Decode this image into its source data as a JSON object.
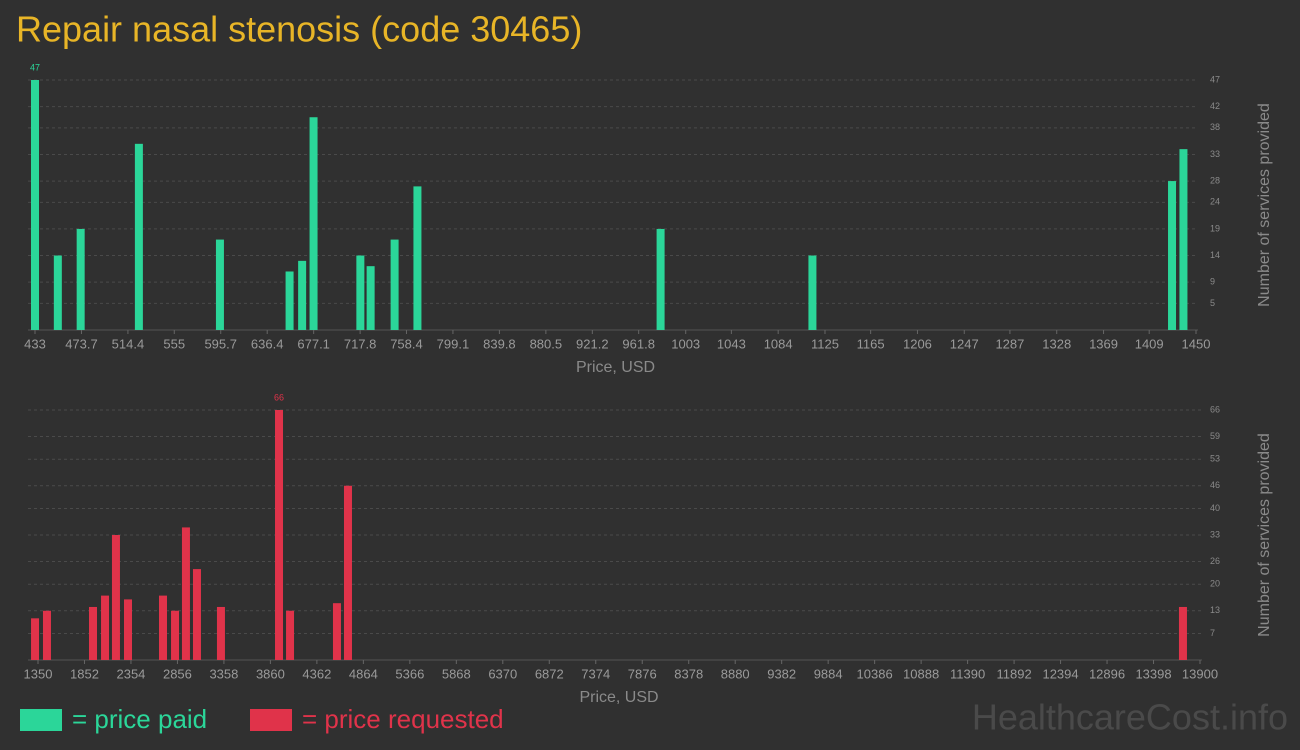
{
  "title": "Repair nasal stenosis (code 30465)",
  "watermark": "HealthcareCost.info",
  "chart_data": [
    {
      "type": "bar",
      "name": "= price paid",
      "color": "#2bd699",
      "x": [
        433,
        453,
        473,
        524,
        595,
        656,
        667,
        677,
        718,
        727,
        748,
        768,
        981,
        1114,
        1429,
        1439
      ],
      "values": [
        47,
        14,
        19,
        35,
        17,
        11,
        13,
        40,
        14,
        12,
        17,
        27,
        19,
        14,
        28,
        34
      ],
      "xlim": [
        433,
        1450
      ],
      "xticks": [
        433,
        473.7,
        514.4,
        555,
        595.7,
        636.4,
        677.1,
        717.8,
        758.4,
        799.1,
        839.8,
        880.5,
        921.2,
        961.8,
        1003,
        1043,
        1084,
        1125,
        1165,
        1206,
        1247,
        1287,
        1328,
        1369,
        1409,
        1450
      ],
      "ylim": [
        0,
        47
      ],
      "yticks": [
        5,
        9,
        14,
        19,
        24,
        28,
        33,
        38,
        42,
        47
      ],
      "xlabel": "Price, USD",
      "ylabel": "Number of services provided",
      "grid": true
    },
    {
      "type": "bar",
      "name": "= price requested",
      "color": "#e0334a",
      "x": [
        1318,
        1447,
        1944,
        2074,
        2192,
        2322,
        2700,
        2830,
        2948,
        3067,
        3326,
        3953,
        4072,
        4579,
        4698,
        13716
      ],
      "values": [
        11,
        13,
        14,
        17,
        33,
        16,
        17,
        13,
        35,
        24,
        14,
        66,
        13,
        15,
        46,
        14
      ],
      "xlim": [
        1350,
        13900
      ],
      "xticks": [
        1350,
        1852,
        2354,
        2856,
        3358,
        3860,
        4362,
        4864,
        5366,
        5868,
        6370,
        6872,
        7374,
        7876,
        8378,
        8880,
        9382,
        9884,
        10386,
        10888,
        11390,
        11892,
        12394,
        12896,
        13398,
        13900
      ],
      "ylim": [
        0,
        66
      ],
      "yticks": [
        7,
        13,
        20,
        26,
        33,
        40,
        46,
        53,
        59,
        66
      ],
      "xlabel": "Price, USD",
      "ylabel": "Number of services provided",
      "grid": true
    }
  ]
}
